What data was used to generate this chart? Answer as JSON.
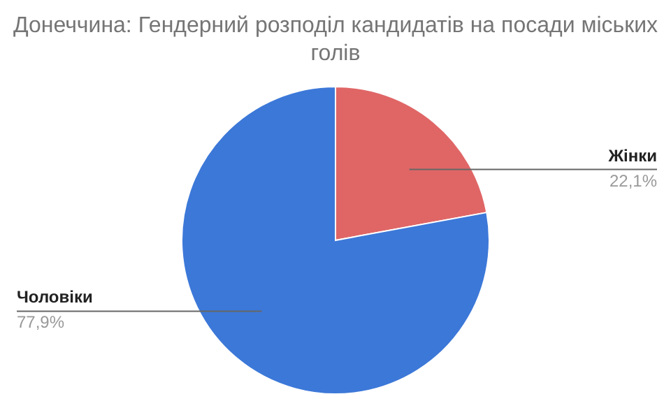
{
  "chart_data": {
    "type": "pie",
    "title": "Донеччина: Гендерний розподіл кандидатів на посади міських голів",
    "categories": [
      "Жінки",
      "Чоловіки"
    ],
    "values": [
      22.1,
      77.9
    ],
    "colors": [
      "#e06666",
      "#3c78d8"
    ],
    "value_labels": [
      "22,1%",
      "77,9%"
    ]
  }
}
